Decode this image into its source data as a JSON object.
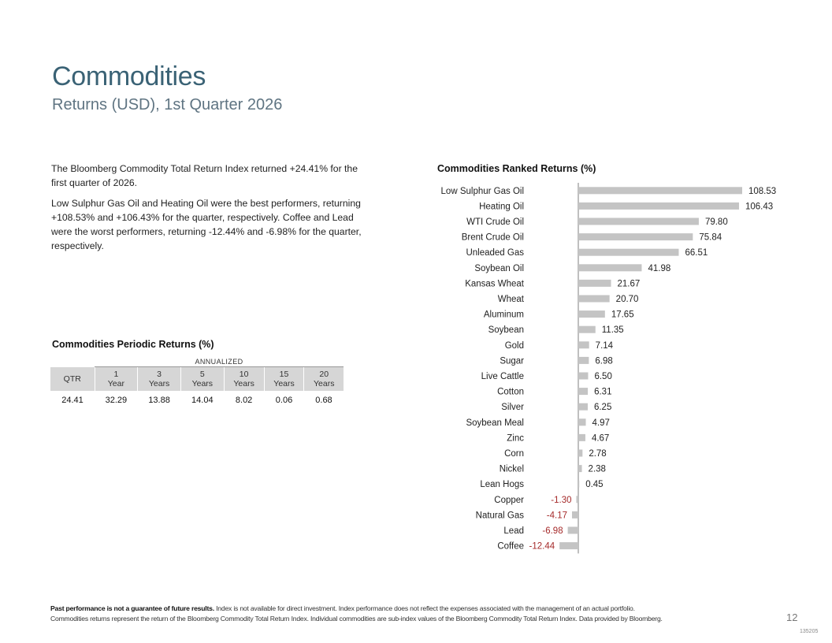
{
  "page": {
    "title": "Commodities",
    "subtitle": "Returns (USD), 1st Quarter 2026",
    "summary": [
      "The Bloomberg Commodity Total Return Index returned +24.41% for the first quarter of 2026.",
      "Low Sulphur Gas Oil and Heating Oil were the best performers, returning +108.53% and +106.43% for the quarter, respectively. Coffee and Lead were the worst performers, returning -12.44% and -6.98% for the quarter, respectively."
    ],
    "page_number": "12",
    "doc_code": "135205"
  },
  "periodic": {
    "title": "Commodities Periodic Returns (%)",
    "annualized_label": "ANNUALIZED",
    "qtr_label": "QTR",
    "columns": [
      {
        "top": "1",
        "bottom": "Year"
      },
      {
        "top": "3",
        "bottom": "Years"
      },
      {
        "top": "5",
        "bottom": "Years"
      },
      {
        "top": "10",
        "bottom": "Years"
      },
      {
        "top": "15",
        "bottom": "Years"
      },
      {
        "top": "20",
        "bottom": "Years"
      }
    ],
    "values": [
      "24.41",
      "32.29",
      "13.88",
      "14.04",
      "8.02",
      "0.06",
      "0.68"
    ]
  },
  "footer": {
    "bold": "Past performance is not a guarantee of future results.",
    "line1": " Index is not available for direct investment. Index performance does not reflect the expenses associated with the management of an actual portfolio.",
    "line2": "Commodities returns represent the return of the Bloomberg Commodity Total Return Index. Individual commodities are sub-index values of the Bloomberg Commodity Total Return Index. Data provided by Bloomberg."
  },
  "colors": {
    "bar": "#c4c4c4",
    "negative_label": "#a52a2a",
    "positive_label": "#222222",
    "axis": "#7f7f7f"
  },
  "chart_data": {
    "type": "bar",
    "orientation": "horizontal",
    "title": "Commodities Ranked Returns (%)",
    "categories": [
      "Low Sulphur Gas Oil",
      "Heating Oil",
      "WTI Crude Oil",
      "Brent Crude Oil",
      "Unleaded Gas",
      "Soybean Oil",
      "Kansas Wheat",
      "Wheat",
      "Aluminum",
      "Soybean",
      "Gold",
      "Sugar",
      "Live Cattle",
      "Cotton",
      "Silver",
      "Soybean Meal",
      "Zinc",
      "Corn",
      "Nickel",
      "Lean Hogs",
      "Copper",
      "Natural Gas",
      "Lead",
      "Coffee"
    ],
    "values": [
      108.53,
      106.43,
      79.8,
      75.84,
      66.51,
      41.98,
      21.67,
      20.7,
      17.65,
      11.35,
      7.14,
      6.98,
      6.5,
      6.31,
      6.25,
      4.97,
      4.67,
      2.78,
      2.38,
      0.45,
      -1.3,
      -4.17,
      -6.98,
      -12.44
    ],
    "labels": [
      "108.53",
      "106.43",
      "79.80",
      "75.84",
      "66.51",
      "41.98",
      "21.67",
      "20.70",
      "17.65",
      "11.35",
      "7.14",
      "6.98",
      "6.50",
      "6.31",
      "6.25",
      "4.97",
      "4.67",
      "2.78",
      "2.38",
      "0.45",
      "-1.30",
      "-4.17",
      "-6.98",
      "-12.44"
    ],
    "xlim": [
      -12.44,
      108.53
    ],
    "xlabel": "",
    "ylabel": "",
    "grid": false
  }
}
